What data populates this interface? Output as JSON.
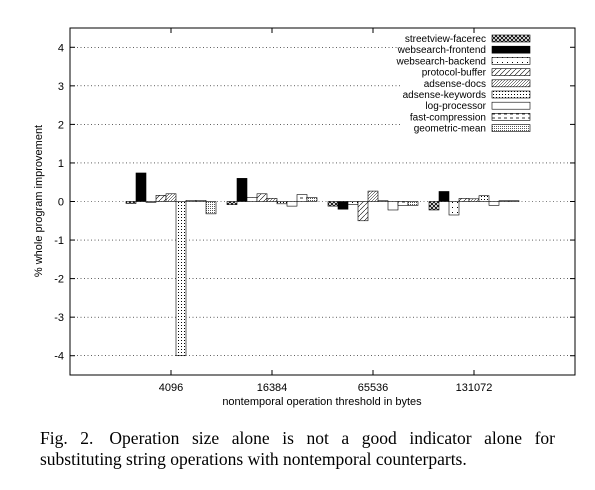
{
  "chart_data": {
    "type": "bar",
    "xlabel": "nontemporal operation threshold in bytes",
    "ylabel": "% whole program improvement",
    "categories": [
      "4096",
      "16384",
      "65536",
      "131072"
    ],
    "ylim": [
      -4.5,
      4.5
    ],
    "yticks": [
      -4,
      -3,
      -2,
      -1,
      0,
      1,
      2,
      3,
      4
    ],
    "grid": true,
    "legend_position": "top-right",
    "series": [
      {
        "name": "streetview-facerec",
        "pattern": "crosshatch",
        "values": [
          -0.05,
          -0.08,
          -0.12,
          -0.22
        ]
      },
      {
        "name": "websearch-frontend",
        "pattern": "solid",
        "values": [
          0.74,
          0.6,
          -0.2,
          0.26
        ]
      },
      {
        "name": "websearch-backend",
        "pattern": "sparse-dots",
        "values": [
          -0.02,
          0.1,
          -0.08,
          -0.35
        ]
      },
      {
        "name": "protocol-buffer",
        "pattern": "diagonal",
        "values": [
          0.16,
          0.2,
          -0.5,
          0.08
        ]
      },
      {
        "name": "adsense-docs",
        "pattern": "fine-diagonal",
        "values": [
          0.2,
          0.08,
          0.27,
          0.07
        ]
      },
      {
        "name": "adsense-keywords",
        "pattern": "dots",
        "values": [
          -4.0,
          -0.06,
          0.02,
          0.15
        ]
      },
      {
        "name": "log-processor",
        "pattern": "empty",
        "values": [
          0.03,
          -0.12,
          -0.22,
          -0.1
        ]
      },
      {
        "name": "fast-compression",
        "pattern": "dashes",
        "values": [
          0.03,
          0.18,
          -0.1,
          0.02
        ]
      },
      {
        "name": "geometric-mean",
        "pattern": "fine-dots",
        "values": [
          -0.32,
          0.1,
          -0.1,
          0.02
        ]
      }
    ]
  },
  "caption": {
    "number": "Fig. 2.",
    "text": "Operation size alone is not a good indicator alone for substituting string operations with nontemporal counterparts."
  }
}
